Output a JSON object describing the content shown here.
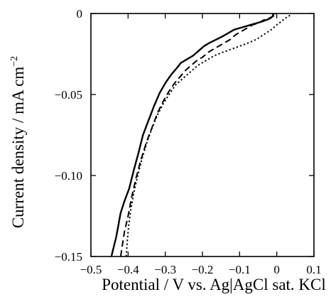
{
  "chart_data": {
    "type": "line",
    "xlabel": "Potential / V vs. Ag|AgCl sat. KCl",
    "ylabel": "Current density / mA cm",
    "ylabel_superscript": "−2",
    "xlim": [
      -0.5,
      0.1
    ],
    "ylim": [
      -0.15,
      0
    ],
    "x_ticks": [
      -0.5,
      -0.4,
      -0.3,
      -0.2,
      -0.1,
      0,
      0.1
    ],
    "x_tick_labels": [
      "−0.5",
      "−0.4",
      "−0.3",
      "−0.2",
      "−0.1",
      "0",
      "0.1"
    ],
    "y_ticks": [
      0,
      -0.05,
      -0.1,
      -0.15
    ],
    "y_tick_labels": [
      "0",
      "−0.05",
      "−0.10",
      "−0.15"
    ],
    "grid": false,
    "legend": "none",
    "series": [
      {
        "style": "solid",
        "x": [
          -0.445,
          -0.432,
          -0.42,
          -0.41,
          -0.397,
          -0.385,
          -0.372,
          -0.36,
          -0.345,
          -0.33,
          -0.315,
          -0.3,
          -0.285,
          -0.27,
          -0.258,
          -0.24,
          -0.225,
          -0.21,
          -0.195,
          -0.18,
          -0.162,
          -0.145,
          -0.13,
          -0.115,
          -0.1,
          -0.085,
          -0.07,
          -0.055,
          -0.04,
          -0.028,
          -0.018,
          -0.012,
          -0.01,
          -0.01,
          -0.003
        ],
        "y": [
          -0.15,
          -0.138,
          -0.123,
          -0.116,
          -0.108,
          -0.097,
          -0.086,
          -0.075,
          -0.066,
          -0.057,
          -0.049,
          -0.043,
          -0.038,
          -0.034,
          -0.0305,
          -0.028,
          -0.026,
          -0.023,
          -0.02,
          -0.018,
          -0.016,
          -0.014,
          -0.012,
          -0.01,
          -0.009,
          -0.008,
          -0.007,
          -0.006,
          -0.005,
          -0.004,
          -0.003,
          -0.002,
          -0.001,
          0.0,
          0.0
        ]
      },
      {
        "style": "dashed",
        "x": [
          -0.42,
          -0.41,
          -0.4,
          -0.39,
          -0.378,
          -0.365,
          -0.35,
          -0.335,
          -0.32,
          -0.305,
          -0.29,
          -0.275,
          -0.26,
          -0.245,
          -0.23,
          -0.215,
          -0.2,
          -0.185,
          -0.17,
          -0.155,
          -0.14,
          -0.125,
          -0.11,
          -0.095,
          -0.08,
          -0.065,
          -0.05,
          -0.035,
          -0.022,
          -0.012,
          -0.006,
          -0.004
        ],
        "y": [
          -0.15,
          -0.135,
          -0.125,
          -0.113,
          -0.101,
          -0.09,
          -0.079,
          -0.07,
          -0.061,
          -0.054,
          -0.048,
          -0.043,
          -0.039,
          -0.035,
          -0.032,
          -0.029,
          -0.027,
          -0.024,
          -0.022,
          -0.02,
          -0.018,
          -0.016,
          -0.013,
          -0.011,
          -0.009,
          -0.007,
          -0.006,
          -0.004,
          -0.003,
          -0.002,
          -0.001,
          0.0
        ]
      },
      {
        "style": "dotted",
        "x": [
          -0.405,
          -0.402,
          -0.398,
          -0.392,
          -0.384,
          -0.374,
          -0.363,
          -0.35,
          -0.336,
          -0.322,
          -0.306,
          -0.29,
          -0.272,
          -0.252,
          -0.232,
          -0.212,
          -0.19,
          -0.168,
          -0.146,
          -0.122,
          -0.098,
          -0.075,
          -0.055,
          -0.035,
          -0.015,
          0.0,
          0.012,
          0.022,
          0.03,
          0.036,
          0.038
        ],
        "y": [
          -0.15,
          -0.14,
          -0.13,
          -0.12,
          -0.11,
          -0.1,
          -0.09,
          -0.08,
          -0.071,
          -0.063,
          -0.056,
          -0.05,
          -0.044,
          -0.04,
          -0.036,
          -0.032,
          -0.029,
          -0.026,
          -0.024,
          -0.022,
          -0.02,
          -0.018,
          -0.016,
          -0.013,
          -0.01,
          -0.007,
          -0.005,
          -0.003,
          -0.002,
          -0.001,
          0.0
        ]
      }
    ]
  }
}
